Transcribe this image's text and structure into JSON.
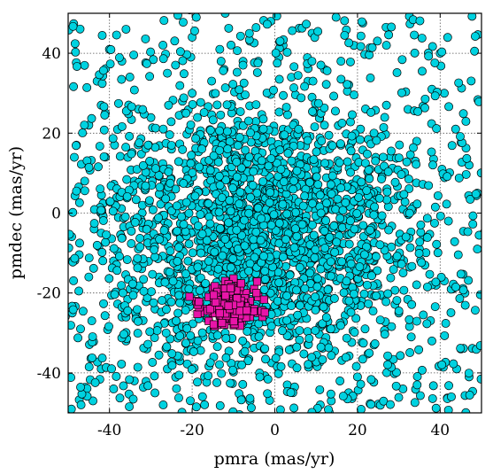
{
  "chart_data": {
    "type": "scatter",
    "xlabel": "pmra (mas/yr)",
    "ylabel": "pmdec (mas/yr)",
    "xlim": [
      -50,
      50
    ],
    "ylim": [
      -50,
      50
    ],
    "xticks": [
      -40,
      -20,
      0,
      20,
      40
    ],
    "yticks": [
      -40,
      -20,
      0,
      20,
      40
    ],
    "xtick_labels": [
      "-40",
      "-20",
      "0",
      "20",
      "40"
    ],
    "ytick_labels": [
      "-40",
      "-20",
      "0",
      "20",
      "40"
    ],
    "grid": true,
    "grid_style": "dotted",
    "legend": "none",
    "series": [
      {
        "marker": "circle",
        "color": "#00d2e0",
        "edge_color": "#000000",
        "approx_count": 2500,
        "distribution": {
          "center": [
            -3,
            -5
          ],
          "spread": [
            18,
            16
          ]
        },
        "sample_points": [
          [
            -37,
            -26
          ],
          [
            -47,
            -29
          ],
          [
            -35,
            -19
          ],
          [
            -49,
            -25
          ],
          [
            -36,
            -32
          ],
          [
            -42,
            -39
          ],
          [
            -34,
            -42
          ],
          [
            -39,
            -44
          ],
          [
            -29,
            -45
          ],
          [
            -26,
            -39
          ],
          [
            -31,
            -34
          ],
          [
            -24,
            -27
          ],
          [
            -19,
            -33
          ],
          [
            -17,
            -41
          ],
          [
            -6,
            -47
          ],
          [
            3,
            -43
          ],
          [
            10,
            -38
          ],
          [
            14,
            -29
          ],
          [
            20,
            -41
          ],
          [
            28,
            -37
          ],
          [
            33,
            -31
          ],
          [
            38,
            -32
          ],
          [
            44,
            -39
          ],
          [
            47,
            -41
          ],
          [
            41,
            -17
          ],
          [
            46,
            -20
          ],
          [
            35,
            -9
          ],
          [
            42,
            -2
          ],
          [
            49,
            5
          ],
          [
            47,
            12
          ],
          [
            41,
            30
          ],
          [
            38,
            31
          ],
          [
            27,
            27
          ],
          [
            24,
            20
          ],
          [
            28,
            14
          ],
          [
            34,
            13
          ],
          [
            20,
            6
          ],
          [
            16,
            17
          ],
          [
            9,
            29
          ],
          [
            4,
            34
          ],
          [
            8,
            33
          ],
          [
            12,
            36
          ],
          [
            1,
            39
          ],
          [
            2,
            42
          ],
          [
            -1,
            48
          ],
          [
            -4,
            38
          ],
          [
            -13,
            38
          ],
          [
            -20,
            30
          ],
          [
            -22,
            25
          ],
          [
            -26,
            35
          ],
          [
            -19,
            49
          ],
          [
            -12,
            50
          ],
          [
            -37,
            38
          ],
          [
            -43,
            33
          ],
          [
            -42,
            27
          ],
          [
            -45,
            22
          ],
          [
            -48,
            17
          ],
          [
            -41,
            14
          ],
          [
            -33,
            26
          ],
          [
            -30,
            12
          ],
          [
            -25,
            16
          ],
          [
            -18,
            11
          ],
          [
            -11,
            15
          ],
          [
            -9,
            23
          ],
          [
            -4,
            21
          ],
          [
            1,
            16
          ],
          [
            7,
            13
          ],
          [
            -38,
            4
          ],
          [
            -46,
            8
          ],
          [
            -42,
            -5
          ],
          [
            -49,
            -12
          ],
          [
            -45,
            -16
          ],
          [
            -31,
            -3
          ],
          [
            -26,
            4
          ],
          [
            -16,
            1
          ],
          [
            -8,
            4
          ],
          [
            2,
            3
          ],
          [
            10,
            2
          ],
          [
            18,
            -1
          ],
          [
            26,
            -3
          ],
          [
            31,
            1
          ],
          [
            36,
            -6
          ],
          [
            24,
            -12
          ],
          [
            15,
            -9
          ],
          [
            6,
            -13
          ],
          [
            -2,
            -9
          ],
          [
            -8,
            -18
          ],
          [
            -21,
            -12
          ],
          [
            -28,
            -16
          ],
          [
            -33,
            -9
          ],
          [
            -15,
            -6
          ],
          [
            -4,
            -2
          ],
          [
            5,
            -4
          ],
          [
            13,
            -19
          ],
          [
            21,
            -22
          ],
          [
            30,
            -25
          ],
          [
            -12,
            -30
          ],
          [
            -2,
            -26
          ],
          [
            5,
            -30
          ],
          [
            -23,
            -37
          ],
          [
            -9,
            -38
          ],
          [
            40,
            40
          ],
          [
            9,
            45
          ],
          [
            -6,
            43
          ],
          [
            -20,
            44
          ],
          [
            -36,
            46
          ],
          [
            16,
            38
          ],
          [
            27,
            42
          ],
          [
            45,
            -34
          ],
          [
            49,
            -9
          ],
          [
            -44,
            -47
          ],
          [
            -27,
            -48
          ],
          [
            11,
            -48
          ],
          [
            31,
            -44
          ],
          [
            24,
            -33
          ],
          [
            -3,
            12
          ],
          [
            4,
            8
          ],
          [
            -10,
            8
          ],
          [
            -20,
            4
          ],
          [
            -29,
            -24
          ],
          [
            -16,
            -25
          ],
          [
            -5,
            -15
          ],
          [
            10,
            -24
          ],
          [
            18,
            -14
          ],
          [
            0,
            -20
          ],
          [
            -34,
            8
          ],
          [
            -39,
            -12
          ],
          [
            -13,
            19
          ],
          [
            12,
            22
          ],
          [
            -7,
            -33
          ]
        ]
      },
      {
        "marker": "square",
        "color": "#e815a8",
        "edge_color": "#000000",
        "approx_count": 180,
        "distribution": {
          "center": [
            -11,
            -23
          ],
          "spread": [
            3.5,
            2.6
          ]
        },
        "sample_points": [
          [
            -19,
            -22
          ],
          [
            -17,
            -24
          ],
          [
            -16,
            -21
          ],
          [
            -15,
            -25
          ],
          [
            -14,
            -20
          ],
          [
            -13,
            -23
          ],
          [
            -13,
            -26
          ],
          [
            -12,
            -21
          ],
          [
            -12,
            -24
          ],
          [
            -11,
            -19
          ],
          [
            -11,
            -22
          ],
          [
            -11,
            -27
          ],
          [
            -10,
            -20
          ],
          [
            -10,
            -23
          ],
          [
            -10,
            -25
          ],
          [
            -9,
            -18
          ],
          [
            -9,
            -22
          ],
          [
            -9,
            -26
          ],
          [
            -8,
            -21
          ],
          [
            -8,
            -24
          ],
          [
            -7,
            -20
          ],
          [
            -7,
            -23
          ],
          [
            -6,
            -22
          ],
          [
            -6,
            -26
          ],
          [
            -5,
            -24
          ],
          [
            -4,
            -21
          ],
          [
            -4,
            -25
          ],
          [
            -3,
            -26
          ],
          [
            -14,
            -28
          ],
          [
            -12,
            -17
          ],
          [
            -16,
            -27
          ],
          [
            -18,
            -25
          ],
          [
            -8,
            -27
          ],
          [
            -5,
            -19
          ],
          [
            -15,
            -19
          ]
        ]
      }
    ]
  }
}
